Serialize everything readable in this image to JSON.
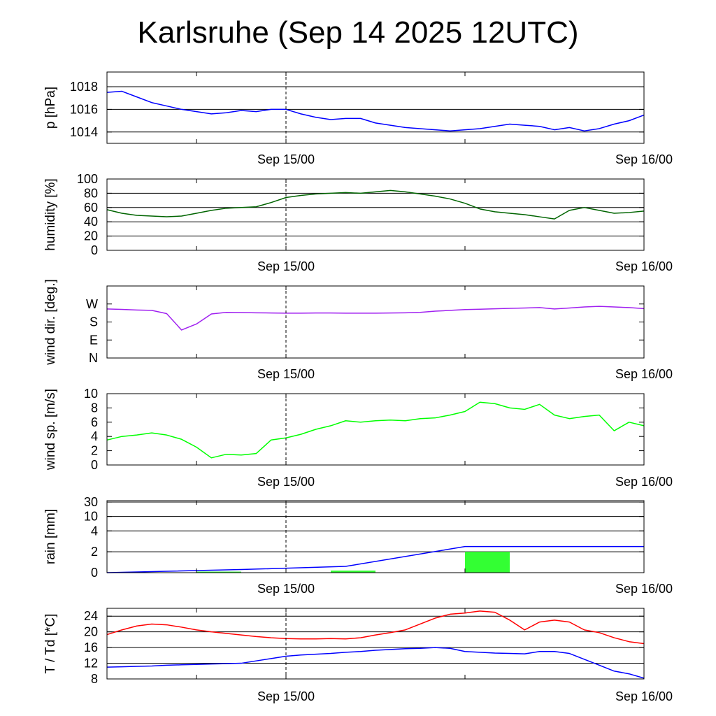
{
  "title": "Karlsruhe (Sep 14 2025 12UTC)",
  "colors": {
    "pressure": "#0000ff",
    "humidity": "#006400",
    "wind_dir": "#a020f0",
    "wind_speed": "#00ff00",
    "rain_bar": "#33ff33",
    "rain_line": "#0000ff",
    "temperature": "#ff0000",
    "dewpoint": "#0000ff"
  },
  "chart_data": [
    {
      "type": "line",
      "ylabel": "p [hPa]",
      "x_tick_labels": [
        "Sep 15/00",
        "Sep 16/00"
      ],
      "x_hours": [
        0,
        1,
        2,
        3,
        4,
        5,
        6,
        7,
        8,
        9,
        10,
        11,
        12,
        13,
        14,
        15,
        16,
        17,
        18,
        19,
        20,
        21,
        22,
        23,
        24,
        25,
        26,
        27,
        28,
        29,
        30,
        31,
        32,
        33,
        34,
        35,
        36
      ],
      "yticks": [
        1014,
        1016,
        1018
      ],
      "ylim": [
        1013,
        1019.3
      ],
      "grid": true,
      "series": [
        {
          "color_key": "pressure",
          "values": [
            1017.5,
            1017.6,
            1017.1,
            1016.6,
            1016.3,
            1016.0,
            1015.8,
            1015.6,
            1015.7,
            1015.9,
            1015.8,
            1016.0,
            1016.0,
            1015.6,
            1015.3,
            1015.1,
            1015.2,
            1015.2,
            1014.8,
            1014.6,
            1014.4,
            1014.3,
            1014.2,
            1014.1,
            1014.2,
            1014.3,
            1014.5,
            1014.7,
            1014.6,
            1014.5,
            1014.2,
            1014.4,
            1014.1,
            1014.3,
            1014.7,
            1015.0,
            1015.5
          ]
        }
      ]
    },
    {
      "type": "line",
      "ylabel": "humidity [%]",
      "x_tick_labels": [
        "Sep 15/00",
        "Sep 16/00"
      ],
      "x_hours": [
        0,
        1,
        2,
        3,
        4,
        5,
        6,
        7,
        8,
        9,
        10,
        11,
        12,
        13,
        14,
        15,
        16,
        17,
        18,
        19,
        20,
        21,
        22,
        23,
        24,
        25,
        26,
        27,
        28,
        29,
        30,
        31,
        32,
        33,
        34,
        35,
        36
      ],
      "yticks": [
        0,
        20,
        40,
        60,
        80,
        100
      ],
      "ylim": [
        0,
        100
      ],
      "grid": true,
      "series": [
        {
          "color_key": "humidity",
          "values": [
            57,
            52,
            49,
            48,
            47,
            48,
            52,
            56,
            59,
            60,
            61,
            67,
            74,
            77,
            79,
            80,
            81,
            80,
            82,
            84,
            82,
            79,
            76,
            72,
            66,
            58,
            54,
            52,
            50,
            47,
            44,
            56,
            60,
            56,
            52,
            53,
            55
          ]
        }
      ]
    },
    {
      "type": "line",
      "ylabel": "wind dir. [deg.]",
      "x_tick_labels": [
        "Sep 15/00",
        "Sep 16/00"
      ],
      "x_hours": [
        0,
        1,
        2,
        3,
        4,
        5,
        6,
        7,
        8,
        9,
        10,
        11,
        12,
        13,
        14,
        15,
        16,
        17,
        18,
        19,
        20,
        21,
        22,
        23,
        24,
        25,
        26,
        27,
        28,
        29,
        30,
        31,
        32,
        33,
        34,
        35,
        36
      ],
      "yticks": [
        0,
        90,
        180,
        270
      ],
      "ytick_labels": [
        "N",
        "E",
        "S",
        "W"
      ],
      "ylim": [
        0,
        360
      ],
      "grid": false,
      "series": [
        {
          "color_key": "wind_dir",
          "values": [
            245,
            243,
            240,
            238,
            222,
            140,
            170,
            220,
            228,
            227,
            226,
            225,
            224,
            224,
            225,
            225,
            224,
            224,
            224,
            225,
            226,
            228,
            234,
            238,
            242,
            244,
            246,
            248,
            250,
            252,
            245,
            250,
            255,
            258,
            255,
            252,
            247
          ]
        }
      ]
    },
    {
      "type": "line",
      "ylabel": "wind sp. [m/s]",
      "x_tick_labels": [
        "Sep 15/00",
        "Sep 16/00"
      ],
      "x_hours": [
        0,
        1,
        2,
        3,
        4,
        5,
        6,
        7,
        8,
        9,
        10,
        11,
        12,
        13,
        14,
        15,
        16,
        17,
        18,
        19,
        20,
        21,
        22,
        23,
        24,
        25,
        26,
        27,
        28,
        29,
        30,
        31,
        32,
        33,
        34,
        35,
        36
      ],
      "yticks": [
        0,
        2,
        4,
        6,
        8,
        10
      ],
      "ylim": [
        0,
        10
      ],
      "grid": false,
      "series": [
        {
          "color_key": "wind_speed",
          "values": [
            3.5,
            4.0,
            4.2,
            4.5,
            4.2,
            3.6,
            2.5,
            1.0,
            1.5,
            1.4,
            1.6,
            3.5,
            3.8,
            4.3,
            5.0,
            5.5,
            6.2,
            6.0,
            6.2,
            6.3,
            6.2,
            6.5,
            6.6,
            7.0,
            7.5,
            8.8,
            8.6,
            8.0,
            7.8,
            8.5,
            7.0,
            6.5,
            6.8,
            7.0,
            4.8,
            6.0,
            5.5
          ]
        }
      ]
    },
    {
      "type": "bar",
      "ylabel": "rain [mm]",
      "x_tick_labels": [
        "Sep 15/00",
        "Sep 16/00"
      ],
      "yticks": [
        0,
        2,
        4,
        10,
        30
      ],
      "ylim": [
        0,
        30
      ],
      "grid": true,
      "scale": "nonlinear",
      "bars": [
        {
          "start_hour": 6,
          "end_hour": 9,
          "value": 0.1
        },
        {
          "start_hour": 15,
          "end_hour": 18,
          "value": 0.2
        },
        {
          "start_hour": 24,
          "end_hour": 27,
          "value": 2.0
        }
      ],
      "accumulated": {
        "x_hours": [
          0,
          9,
          16,
          24,
          36
        ],
        "values": [
          0,
          0.3,
          0.6,
          2.5,
          2.5
        ]
      }
    },
    {
      "type": "line",
      "ylabel": "T / Td [*C]",
      "x_tick_labels": [
        "Sep 15/00",
        "Sep 16/00"
      ],
      "x_hours": [
        0,
        1,
        2,
        3,
        4,
        5,
        6,
        7,
        8,
        9,
        10,
        11,
        12,
        13,
        14,
        15,
        16,
        17,
        18,
        19,
        20,
        21,
        22,
        23,
        24,
        25,
        26,
        27,
        28,
        29,
        30,
        31,
        32,
        33,
        34,
        35,
        36
      ],
      "yticks": [
        8,
        12,
        16,
        20,
        24
      ],
      "ylim": [
        8,
        26
      ],
      "grid": true,
      "series": [
        {
          "color_key": "temperature",
          "values": [
            19.3,
            20.5,
            21.5,
            22,
            21.8,
            21.2,
            20.5,
            20,
            19.6,
            19.2,
            18.8,
            18.5,
            18.3,
            18.2,
            18.2,
            18.3,
            18.2,
            18.5,
            19.2,
            19.8,
            20.5,
            22,
            23.5,
            24.5,
            24.8,
            25.3,
            25,
            23,
            20.5,
            22.5,
            23,
            22.5,
            20.5,
            19.8,
            18.5,
            17.5,
            17
          ]
        },
        {
          "color_key": "dewpoint",
          "values": [
            11,
            11.1,
            11.2,
            11.3,
            11.5,
            11.6,
            11.7,
            11.8,
            11.9,
            12,
            12.6,
            13.2,
            13.8,
            14.1,
            14.3,
            14.5,
            14.8,
            15,
            15.3,
            15.5,
            15.7,
            15.8,
            16,
            15.8,
            15,
            14.8,
            14.6,
            14.5,
            14.4,
            15,
            15,
            14.5,
            13,
            11.5,
            10,
            9.3,
            8.2
          ]
        }
      ]
    }
  ]
}
